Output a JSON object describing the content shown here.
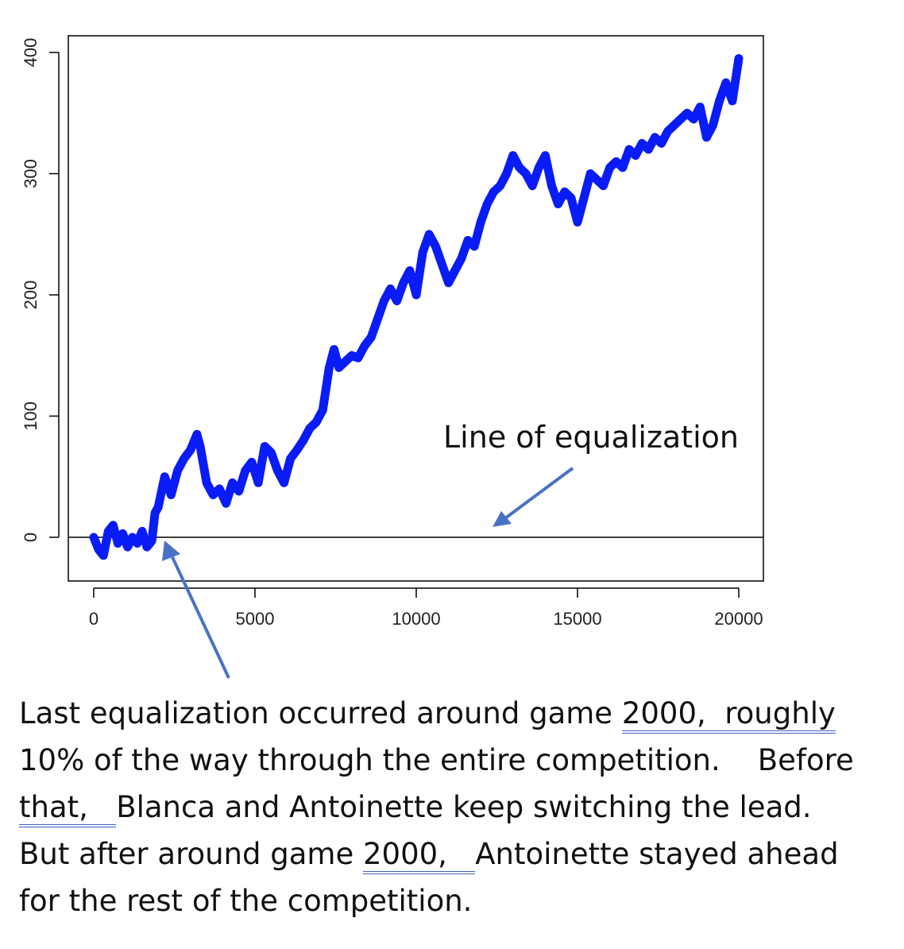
{
  "chart_data": {
    "type": "line",
    "x_ticks": [
      "0",
      "5000",
      "10000",
      "15000",
      "20000"
    ],
    "y_ticks": [
      "0",
      "100",
      "200",
      "300",
      "400"
    ],
    "xlim": [
      0,
      20000
    ],
    "ylim": [
      -35,
      415
    ],
    "grid": false,
    "series_color": "#0a1cf5",
    "reference_line": {
      "y": 0,
      "color": "#000000"
    },
    "x": [
      0,
      150,
      300,
      450,
      600,
      750,
      900,
      1050,
      1200,
      1350,
      1500,
      1650,
      1800,
      1900,
      2000,
      2200,
      2400,
      2600,
      2800,
      3000,
      3200,
      3300,
      3500,
      3700,
      3900,
      4100,
      4300,
      4500,
      4700,
      4900,
      5100,
      5300,
      5500,
      5700,
      5900,
      6100,
      6300,
      6500,
      6700,
      6900,
      7100,
      7300,
      7450,
      7600,
      7800,
      8000,
      8200,
      8400,
      8600,
      8800,
      9000,
      9200,
      9400,
      9600,
      9800,
      10000,
      10200,
      10400,
      10600,
      10800,
      11000,
      11200,
      11400,
      11600,
      11800,
      12000,
      12200,
      12400,
      12600,
      12800,
      13000,
      13200,
      13400,
      13600,
      13800,
      14000,
      14200,
      14400,
      14600,
      14800,
      15000,
      15200,
      15400,
      15600,
      15800,
      16000,
      16200,
      16400,
      16600,
      16800,
      17000,
      17200,
      17400,
      17600,
      17800,
      18000,
      18200,
      18400,
      18600,
      18800,
      19000,
      19200,
      19400,
      19600,
      19800,
      20000
    ],
    "y": [
      0,
      -10,
      -15,
      5,
      10,
      -5,
      3,
      -8,
      0,
      -5,
      5,
      -8,
      -3,
      20,
      25,
      50,
      35,
      55,
      65,
      72,
      85,
      75,
      45,
      35,
      40,
      28,
      45,
      38,
      55,
      62,
      45,
      75,
      70,
      55,
      45,
      65,
      72,
      80,
      90,
      95,
      105,
      140,
      155,
      140,
      145,
      150,
      148,
      158,
      165,
      180,
      195,
      205,
      195,
      210,
      220,
      200,
      235,
      250,
      240,
      225,
      210,
      220,
      230,
      245,
      240,
      260,
      275,
      285,
      290,
      300,
      315,
      305,
      300,
      290,
      305,
      315,
      290,
      275,
      285,
      280,
      260,
      280,
      300,
      295,
      290,
      305,
      310,
      305,
      320,
      315,
      325,
      320,
      330,
      325,
      335,
      340,
      345,
      350,
      345,
      355,
      330,
      340,
      360,
      375,
      360,
      395
    ]
  },
  "annotations": {
    "equalization_label": "Line of equalization"
  },
  "caption": {
    "line1_pre": "Last equalization occurred around game ",
    "line1_link": "2000,  roughly",
    "line2": "10% of the way through the entire competition.    Before",
    "line3_link": "that,   ",
    "line3_post": "Blanca and Antoinette keep switching the lead.",
    "line4_pre": "But after around game ",
    "line4_link": "2000,   ",
    "line4_post": "Antoinette stayed ahead",
    "line5": "for the rest of the competition."
  }
}
